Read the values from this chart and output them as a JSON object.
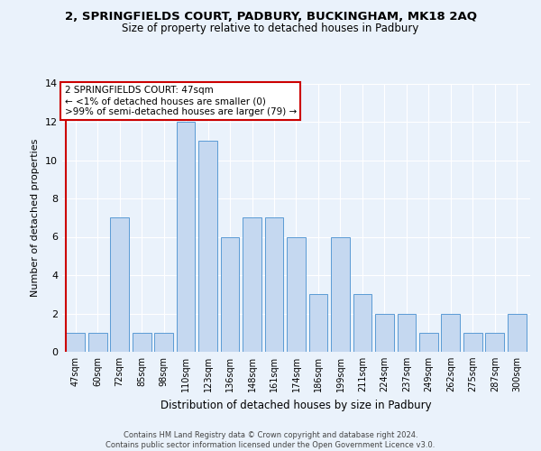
{
  "title1": "2, SPRINGFIELDS COURT, PADBURY, BUCKINGHAM, MK18 2AQ",
  "title2": "Size of property relative to detached houses in Padbury",
  "xlabel": "Distribution of detached houses by size in Padbury",
  "ylabel": "Number of detached properties",
  "categories": [
    "47sqm",
    "60sqm",
    "72sqm",
    "85sqm",
    "98sqm",
    "110sqm",
    "123sqm",
    "136sqm",
    "148sqm",
    "161sqm",
    "174sqm",
    "186sqm",
    "199sqm",
    "211sqm",
    "224sqm",
    "237sqm",
    "249sqm",
    "262sqm",
    "275sqm",
    "287sqm",
    "300sqm"
  ],
  "values": [
    1,
    1,
    7,
    1,
    1,
    12,
    11,
    6,
    7,
    7,
    6,
    3,
    6,
    3,
    2,
    2,
    1,
    2,
    1,
    1,
    2
  ],
  "bar_color": "#c5d8f0",
  "bar_edge_color": "#5b9bd5",
  "highlight_line_color": "#cc0000",
  "ylim": [
    0,
    14
  ],
  "yticks": [
    0,
    2,
    4,
    6,
    8,
    10,
    12,
    14
  ],
  "annotation_text": "2 SPRINGFIELDS COURT: 47sqm\n← <1% of detached houses are smaller (0)\n>99% of semi-detached houses are larger (79) →",
  "annotation_box_color": "#ffffff",
  "annotation_border_color": "#cc0000",
  "bg_color": "#eaf2fb",
  "grid_color": "#ffffff",
  "title_fontsize": 9.5,
  "subtitle_fontsize": 8.5,
  "bar_width": 0.85
}
